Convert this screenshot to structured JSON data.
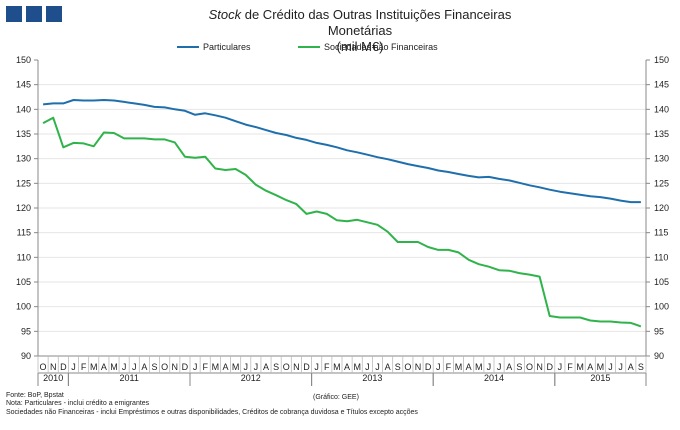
{
  "title": {
    "italic": "Stock",
    "main": " de Crédito das Outras Instituições Financeiras Monetárias",
    "unit": "(mil M€)"
  },
  "legend": [
    {
      "name": "Particulares",
      "color": "#1f6fad"
    },
    {
      "name": "Sociedades não Financeiras",
      "color": "#2fb34a"
    }
  ],
  "footer": {
    "source": "Fonte: BoP, Bpstat",
    "note1": "Nota: Particulares - inclui crédito a emigrantes",
    "note2": "Sociedades não Financeiras - inclui Empréstimos e outras disponibilidades, Créditos de cobrança duvidosa e Títulos excepto acções",
    "graph_source": "(Gráfico: GEE)"
  },
  "chart_data": {
    "type": "line",
    "ylim": [
      90,
      150
    ],
    "yticks": [
      90,
      95,
      100,
      105,
      110,
      115,
      120,
      125,
      130,
      135,
      140,
      145,
      150
    ],
    "month_labels": [
      "O",
      "N",
      "D",
      "J",
      "F",
      "M",
      "A",
      "M",
      "J",
      "J",
      "A",
      "S",
      "O",
      "N",
      "D",
      "J",
      "F",
      "M",
      "A",
      "M",
      "J",
      "J",
      "A",
      "S",
      "O",
      "N",
      "D",
      "J",
      "F",
      "M",
      "A",
      "M",
      "J",
      "J",
      "A",
      "S",
      "O",
      "N",
      "D",
      "J",
      "F",
      "M",
      "A",
      "M",
      "J",
      "J",
      "A",
      "S",
      "O",
      "N",
      "D",
      "J",
      "F",
      "M",
      "A",
      "M",
      "J",
      "J",
      "A",
      "S"
    ],
    "years": [
      {
        "label": "2010",
        "start": 0,
        "end": 3
      },
      {
        "label": "2011",
        "start": 3,
        "end": 15
      },
      {
        "label": "2012",
        "start": 15,
        "end": 27
      },
      {
        "label": "2013",
        "start": 27,
        "end": 39
      },
      {
        "label": "2014",
        "start": 39,
        "end": 51
      },
      {
        "label": "2015",
        "start": 51,
        "end": 60
      }
    ],
    "series": [
      {
        "name": "Particulares",
        "color": "#1f6fad",
        "values": [
          141.0,
          141.2,
          141.2,
          141.9,
          141.8,
          141.8,
          141.9,
          141.8,
          141.5,
          141.2,
          140.9,
          140.5,
          140.4,
          140.0,
          139.7,
          138.9,
          139.2,
          138.8,
          138.3,
          137.6,
          136.9,
          136.4,
          135.8,
          135.2,
          134.8,
          134.2,
          133.8,
          133.2,
          132.8,
          132.3,
          131.7,
          131.3,
          130.8,
          130.3,
          129.9,
          129.4,
          128.9,
          128.5,
          128.1,
          127.6,
          127.3,
          126.9,
          126.5,
          126.2,
          126.3,
          125.9,
          125.6,
          125.1,
          124.6,
          124.2,
          123.7,
          123.3,
          123.0,
          122.7,
          122.4,
          122.2,
          121.9,
          121.5,
          121.2,
          121.2
        ]
      },
      {
        "name": "Sociedades não Financeiras",
        "color": "#2fb34a",
        "values": [
          137.2,
          138.3,
          132.3,
          133.2,
          133.1,
          132.5,
          135.3,
          135.2,
          134.1,
          134.1,
          134.1,
          133.9,
          133.9,
          133.3,
          130.4,
          130.2,
          130.4,
          128.0,
          127.7,
          127.9,
          126.7,
          124.7,
          123.5,
          122.6,
          121.6,
          120.8,
          118.8,
          119.3,
          118.8,
          117.5,
          117.3,
          117.6,
          117.1,
          116.6,
          115.2,
          113.1,
          113.1,
          113.1,
          112.1,
          111.5,
          111.5,
          111.0,
          109.5,
          108.6,
          108.1,
          107.4,
          107.3,
          106.8,
          106.5,
          106.1,
          98.1,
          97.8,
          97.8,
          97.8,
          97.2,
          97.0,
          97.0,
          96.8,
          96.7,
          96.0
        ]
      }
    ]
  }
}
